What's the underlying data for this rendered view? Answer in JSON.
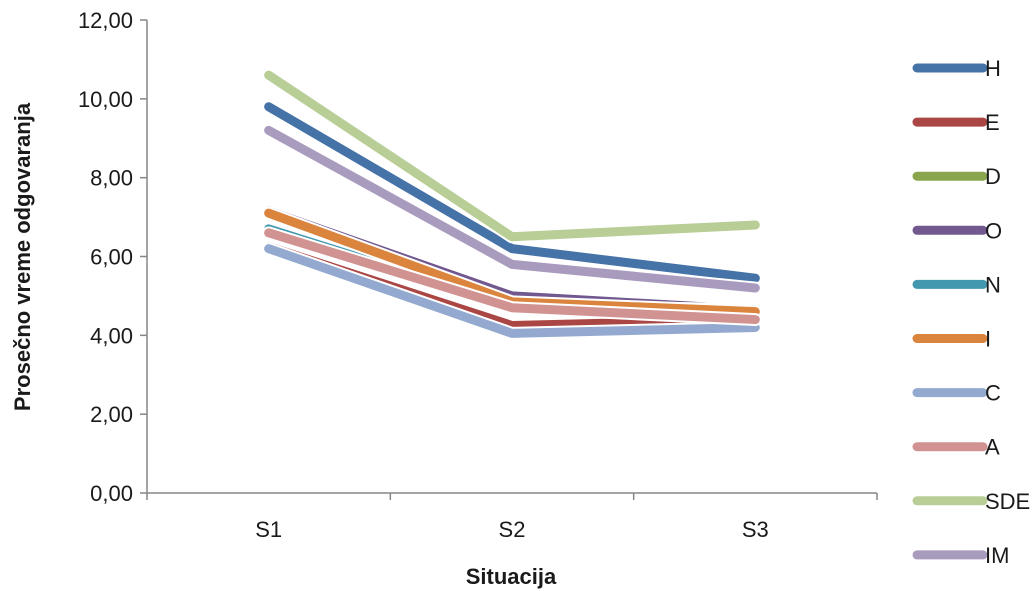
{
  "chart_data": {
    "type": "line",
    "title": "",
    "xlabel": "Situacija",
    "ylabel": "Prosečno vreme odgovaranja",
    "categories": [
      "S1",
      "S2",
      "S3"
    ],
    "ylim": [
      0,
      12
    ],
    "yticks": [
      "0,00",
      "2,00",
      "4,00",
      "6,00",
      "8,00",
      "10,00",
      "12,00"
    ],
    "grid": false,
    "legend": "right",
    "series": [
      {
        "name": "H",
        "color": "#4572A7",
        "values": [
          9.8,
          6.2,
          5.45
        ]
      },
      {
        "name": "E",
        "color": "#AA4643",
        "values": [
          6.25,
          4.25,
          4.4
        ]
      },
      {
        "name": "D",
        "color": "#89A54E",
        "values": [
          6.65,
          4.85,
          4.65
        ]
      },
      {
        "name": "O",
        "color": "#71588F",
        "values": [
          7.15,
          5.0,
          4.65
        ]
      },
      {
        "name": "N",
        "color": "#4198AF",
        "values": [
          6.7,
          4.75,
          4.65
        ]
      },
      {
        "name": "I",
        "color": "#DB843D",
        "values": [
          7.1,
          4.85,
          4.6
        ]
      },
      {
        "name": "C",
        "color": "#93A9CF",
        "values": [
          6.2,
          4.05,
          4.2
        ]
      },
      {
        "name": "A",
        "color": "#D19392",
        "values": [
          6.6,
          4.7,
          4.4
        ]
      },
      {
        "name": "SDE",
        "color": "#B9CD96",
        "values": [
          10.6,
          6.5,
          6.8
        ]
      },
      {
        "name": "IM",
        "color": "#A99BBD",
        "values": [
          9.2,
          5.8,
          5.2
        ]
      }
    ]
  }
}
